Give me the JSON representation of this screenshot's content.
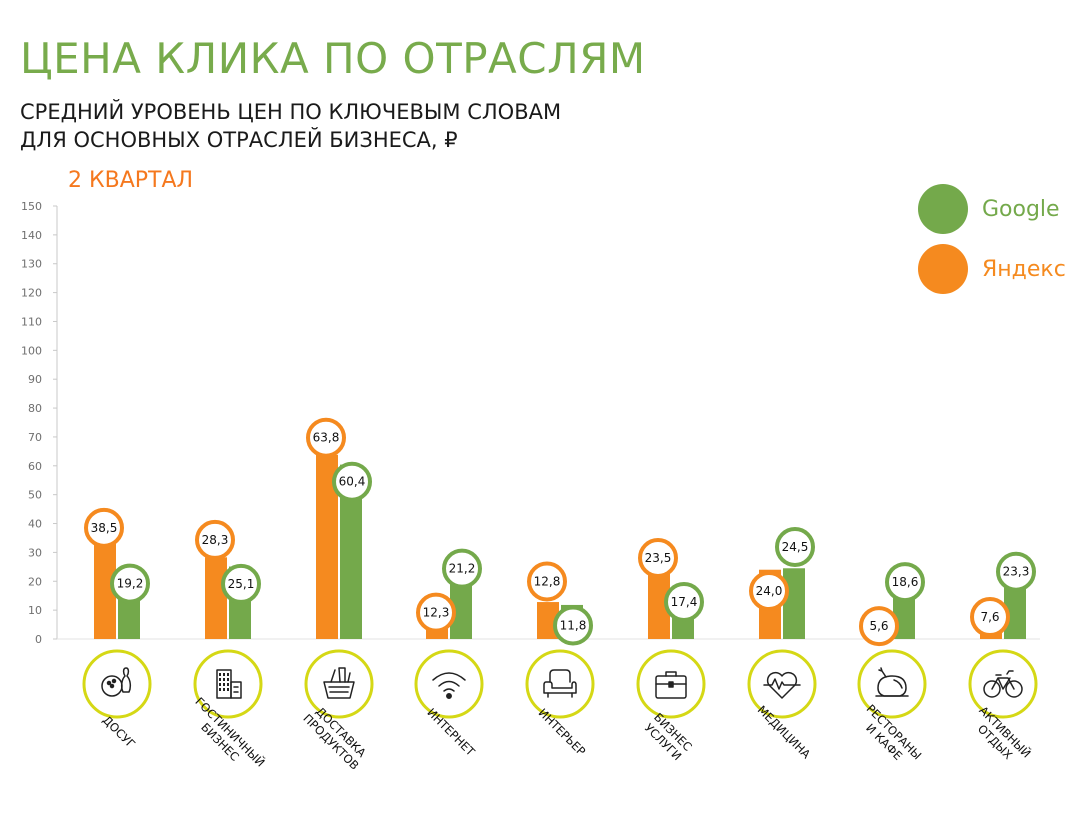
{
  "title": "ЦЕНА КЛИКА ПО ОТРАСЛЯМ",
  "subtitle_line1": "СРЕДНИЙ УРОВЕНЬ ЦЕН ПО КЛЮЧЕВЫМ СЛОВАМ",
  "subtitle_line2": "ДЛЯ ОСНОВНЫХ ОТРАСЛЕЙ БИЗНЕСА, ₽",
  "period": "2 КВАРТАЛ",
  "colors": {
    "google": "#74a94b",
    "yandex": "#f58a1f",
    "icon_ring": "#d5d815",
    "title": "#78ab4c",
    "period": "#f5781e"
  },
  "chart_data": {
    "type": "bar",
    "ylim": [
      0,
      150
    ],
    "yticks": [
      0,
      10,
      20,
      30,
      40,
      50,
      60,
      70,
      80,
      90,
      100,
      110,
      120,
      130,
      140,
      150
    ],
    "legend_position": "top-right",
    "legend": [
      "Google",
      "Яндекс"
    ],
    "categories": [
      [
        "ДОСУГ"
      ],
      [
        "ГОСТИНИЧНЫЙ",
        "БИЗНЕС"
      ],
      [
        "ДОСТАВКА",
        "ПРОДУКТОВ"
      ],
      [
        "ИНТЕРНЕТ"
      ],
      [
        "ИНТЕРЬЕР"
      ],
      [
        "БИЗНЕС",
        "УСЛУГИ"
      ],
      [
        "МЕДИЦИНА"
      ],
      [
        "РЕСТОРАНЫ",
        "И КАФЕ"
      ],
      [
        "АКТИВНЫЙ",
        "ОТДЫХ"
      ]
    ],
    "icons": [
      "bowling-icon",
      "hotel-building-icon",
      "grocery-basket-icon",
      "wifi-icon",
      "armchair-icon",
      "briefcase-icon",
      "heart-pulse-icon",
      "roast-chicken-icon",
      "bicycle-icon"
    ],
    "series": [
      {
        "name": "Яндекс",
        "values": [
          38.5,
          28.3,
          63.8,
          12.3,
          12.8,
          23.5,
          24.0,
          5.6,
          7.6
        ],
        "labels": [
          "38,5",
          "28,3",
          "63,8",
          "12,3",
          "12,8",
          "23,5",
          "24,0",
          "5,6",
          "7,6"
        ]
      },
      {
        "name": "Google",
        "values": [
          19.2,
          25.1,
          60.4,
          21.2,
          11.8,
          17.4,
          24.5,
          18.6,
          23.3
        ],
        "labels": [
          "19,2",
          "25,1",
          "60,4",
          "21,2",
          "11,8",
          "17,4",
          "24,5",
          "18,6",
          "23,3"
        ]
      }
    ]
  }
}
